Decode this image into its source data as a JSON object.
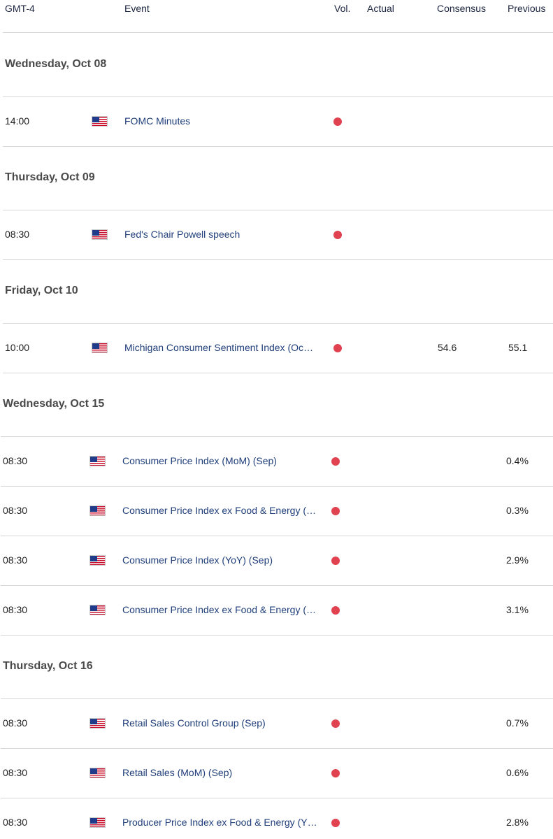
{
  "header": {
    "tz": "GMT-4",
    "event": "Event",
    "vol": "Vol.",
    "actual": "Actual",
    "consensus": "Consensus",
    "previous": "Previous"
  },
  "colors": {
    "volatility_high": "#e0424f",
    "event_text": "#1f3e7a",
    "divider": "#d6d6d6"
  },
  "days": [
    {
      "label": "Wednesday, Oct 08",
      "events": [
        {
          "time": "14:00",
          "flag": "us-flag-icon",
          "event": "FOMC Minutes",
          "actual": "",
          "consensus": "",
          "previous": ""
        }
      ]
    },
    {
      "label": "Thursday, Oct 09",
      "events": [
        {
          "time": "08:30",
          "flag": "us-flag-icon",
          "event": "Fed's Chair Powell speech",
          "actual": "",
          "consensus": "",
          "previous": ""
        }
      ]
    },
    {
      "label": "Friday, Oct 10",
      "events": [
        {
          "time": "10:00",
          "flag": "us-flag-icon",
          "event": "Michigan Consumer Sentiment Index (Oc…",
          "actual": "",
          "consensus": "54.6",
          "previous": "55.1"
        }
      ]
    },
    {
      "label": "Wednesday, Oct 15",
      "events": [
        {
          "time": "08:30",
          "flag": "us-flag-icon",
          "event": "Consumer Price Index (MoM) (Sep)",
          "actual": "",
          "consensus": "",
          "previous": "0.4%"
        },
        {
          "time": "08:30",
          "flag": "us-flag-icon",
          "event": "Consumer Price Index ex Food & Energy (…",
          "actual": "",
          "consensus": "",
          "previous": "0.3%"
        },
        {
          "time": "08:30",
          "flag": "us-flag-icon",
          "event": "Consumer Price Index (YoY) (Sep)",
          "actual": "",
          "consensus": "",
          "previous": "2.9%"
        },
        {
          "time": "08:30",
          "flag": "us-flag-icon",
          "event": "Consumer Price Index ex Food & Energy (…",
          "actual": "",
          "consensus": "",
          "previous": "3.1%"
        }
      ]
    },
    {
      "label": "Thursday, Oct 16",
      "events": [
        {
          "time": "08:30",
          "flag": "us-flag-icon",
          "event": "Retail Sales Control Group (Sep)",
          "actual": "",
          "consensus": "",
          "previous": "0.7%"
        },
        {
          "time": "08:30",
          "flag": "us-flag-icon",
          "event": "Retail Sales (MoM) (Sep)",
          "actual": "",
          "consensus": "",
          "previous": "0.6%"
        },
        {
          "time": "08:30",
          "flag": "us-flag-icon",
          "event": "Producer Price Index ex Food & Energy (Y…",
          "actual": "",
          "consensus": "",
          "previous": "2.8%"
        }
      ]
    }
  ]
}
